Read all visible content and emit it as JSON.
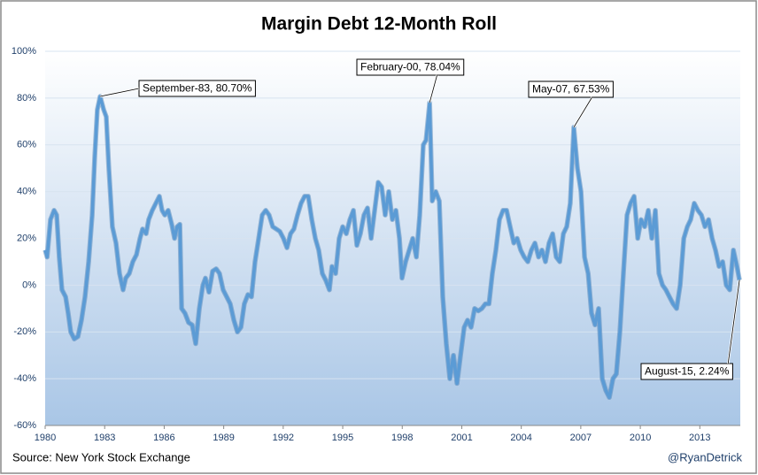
{
  "chart_data": {
    "type": "line",
    "title": "Margin Debt 12-Month Roll",
    "source": "Source:  New York Stock Exchange",
    "credit": "@RyanDetrick",
    "xlim": [
      1980,
      2015.04
    ],
    "xticks": [
      1980,
      1983,
      1986,
      1989,
      1992,
      1995,
      1998,
      2001,
      2004,
      2007,
      2010,
      2013
    ],
    "ylim": [
      -60,
      100
    ],
    "yticks": [
      {
        "value": -60,
        "label": "-60%"
      },
      {
        "value": -40,
        "label": "-40%"
      },
      {
        "value": -20,
        "label": "-20%"
      },
      {
        "value": 0,
        "label": "0%"
      },
      {
        "value": 20,
        "label": "20%"
      },
      {
        "value": 40,
        "label": "40%"
      },
      {
        "value": 60,
        "label": "60%"
      },
      {
        "value": 80,
        "label": "80%"
      },
      {
        "value": 100,
        "label": "100%"
      }
    ],
    "grid": true,
    "series": [
      {
        "name": "Margin Debt 12-Month Roll",
        "color": "#5b9bd5",
        "x": [
          1980.0,
          1980.1,
          1980.27,
          1980.45,
          1980.58,
          1980.71,
          1980.85,
          1981.03,
          1981.16,
          1981.29,
          1981.47,
          1981.65,
          1981.83,
          1982.01,
          1982.19,
          1982.37,
          1982.5,
          1982.63,
          1982.77,
          1982.95,
          1983.08,
          1983.21,
          1983.39,
          1983.57,
          1983.75,
          1983.93,
          1984.06,
          1984.24,
          1984.42,
          1984.6,
          1984.78,
          1984.91,
          1985.09,
          1985.22,
          1985.4,
          1985.58,
          1985.76,
          1985.89,
          1986.03,
          1986.2,
          1986.38,
          1986.52,
          1986.65,
          1986.79,
          1986.88,
          1987.05,
          1987.23,
          1987.41,
          1987.59,
          1987.77,
          1987.95,
          1988.08,
          1988.26,
          1988.44,
          1988.62,
          1988.79,
          1988.97,
          1989.15,
          1989.33,
          1989.51,
          1989.69,
          1989.87,
          1990.04,
          1990.22,
          1990.4,
          1990.58,
          1990.76,
          1990.94,
          1991.12,
          1991.29,
          1991.47,
          1991.65,
          1991.83,
          1992.01,
          1992.19,
          1992.37,
          1992.54,
          1992.72,
          1992.9,
          1993.08,
          1993.26,
          1993.44,
          1993.62,
          1993.79,
          1993.97,
          1994.15,
          1994.33,
          1994.46,
          1994.64,
          1994.82,
          1995.0,
          1995.18,
          1995.36,
          1995.54,
          1995.71,
          1995.89,
          1996.07,
          1996.25,
          1996.43,
          1996.61,
          1996.79,
          1996.96,
          1997.14,
          1997.32,
          1997.5,
          1997.68,
          1997.86,
          1997.99,
          1998.17,
          1998.35,
          1998.53,
          1998.71,
          1998.88,
          1999.06,
          1999.2,
          1999.38,
          1999.51,
          1999.69,
          1999.87,
          2000.04,
          2000.22,
          2000.4,
          2000.58,
          2000.76,
          2000.94,
          2001.12,
          2001.29,
          2001.47,
          2001.65,
          2001.83,
          2002.01,
          2002.19,
          2002.37,
          2002.54,
          2002.72,
          2002.9,
          2003.08,
          2003.26,
          2003.44,
          2003.62,
          2003.79,
          2003.97,
          2004.15,
          2004.33,
          2004.51,
          2004.69,
          2004.87,
          2005.04,
          2005.22,
          2005.4,
          2005.58,
          2005.76,
          2005.94,
          2006.12,
          2006.29,
          2006.47,
          2006.65,
          2006.83,
          2007.01,
          2007.19,
          2007.37,
          2007.54,
          2007.72,
          2007.9,
          2008.08,
          2008.26,
          2008.44,
          2008.62,
          2008.79,
          2008.97,
          2009.15,
          2009.33,
          2009.51,
          2009.69,
          2009.87,
          2010.04,
          2010.22,
          2010.4,
          2010.58,
          2010.76,
          2010.94,
          2011.12,
          2011.29,
          2011.47,
          2011.65,
          2011.83,
          2012.01,
          2012.19,
          2012.37,
          2012.54,
          2012.72,
          2012.9,
          2013.08,
          2013.26,
          2013.44,
          2013.62,
          2013.79,
          2013.97,
          2014.15,
          2014.33,
          2014.51,
          2014.69,
          2014.87,
          2015.0
        ],
        "values": [
          15,
          12,
          28,
          32,
          30,
          12,
          -2,
          -5,
          -12,
          -20,
          -23,
          -22,
          -15,
          -5,
          10,
          30,
          55,
          75,
          80.7,
          75,
          72,
          50,
          25,
          18,
          5,
          -2,
          3,
          5,
          10,
          13,
          20,
          24,
          22,
          28,
          32,
          35,
          38,
          32,
          30,
          32,
          26,
          20,
          25,
          26,
          -10,
          -12,
          -16,
          -17,
          -25,
          -10,
          0,
          3,
          -3,
          6,
          7,
          5,
          -2,
          -5,
          -8,
          -15,
          -20,
          -18,
          -8,
          -4,
          -5,
          10,
          20,
          30,
          32,
          30,
          25,
          24,
          23,
          20,
          16,
          22,
          24,
          30,
          35,
          38,
          38,
          28,
          20,
          15,
          5,
          2,
          -2,
          8,
          5,
          20,
          25,
          22,
          28,
          32,
          17,
          22,
          30,
          33,
          20,
          32,
          44,
          42,
          30,
          40,
          28,
          32,
          20,
          3,
          10,
          15,
          20,
          12,
          30,
          60,
          62,
          78.04,
          36,
          40,
          36,
          -5,
          -25,
          -40,
          -30,
          -42,
          -30,
          -18,
          -15,
          -18,
          -10,
          -11,
          -10,
          -8,
          -8,
          5,
          15,
          28,
          32,
          32,
          25,
          18,
          20,
          15,
          12,
          10,
          15,
          18,
          12,
          15,
          10,
          18,
          22,
          12,
          10,
          22,
          25,
          35,
          67.53,
          50,
          40,
          12,
          5,
          -12,
          -17,
          -10,
          -40,
          -45,
          -48,
          -40,
          -38,
          -20,
          5,
          30,
          35,
          38,
          20,
          28,
          25,
          32,
          20,
          32,
          5,
          0,
          -2,
          -5,
          -8,
          -10,
          0,
          20,
          25,
          28,
          35,
          32,
          30,
          25,
          28,
          20,
          15,
          8,
          10,
          0,
          -2,
          15,
          8,
          2.24
        ]
      }
    ],
    "annotations": [
      {
        "text": "September-83, 80.70%",
        "x": 1982.77,
        "y": 80.7
      },
      {
        "text": "February-00, 78.04%",
        "x": 1999.38,
        "y": 78.04
      },
      {
        "text": "May-07, 67.53%",
        "x": 2006.65,
        "y": 67.53
      },
      {
        "text": "August-15, 2.24%",
        "x": 2015.0,
        "y": 2.24
      }
    ]
  }
}
